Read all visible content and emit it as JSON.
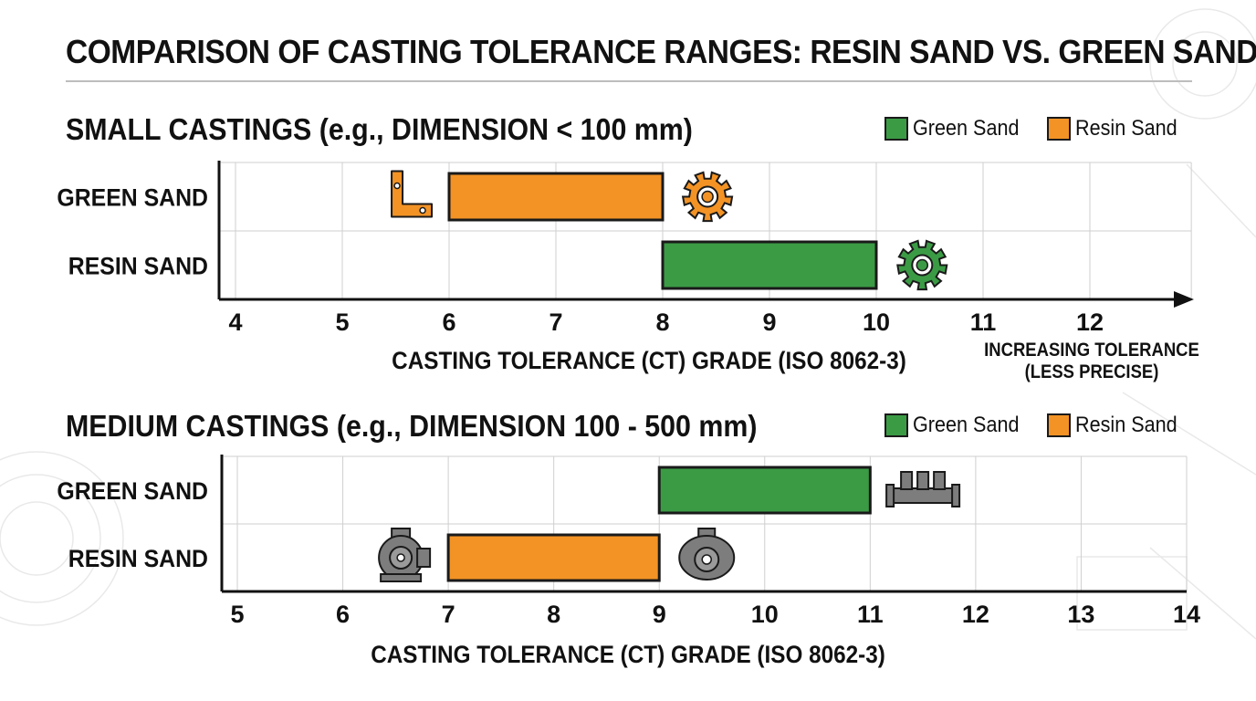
{
  "title": "COMPARISON OF CASTING TOLERANCE RANGES: RESIN SAND VS. GREEN SAND",
  "colors": {
    "green_sand": "#3b9b45",
    "resin_sand": "#f39325",
    "grid": "#cfcfcf",
    "axis": "#111111",
    "icon_gray": "#7d7d7d"
  },
  "chart_data": [
    {
      "type": "bar",
      "orientation": "horizontal-range",
      "title": "SMALL CASTINGS (e.g., DIMENSION < 100 mm)",
      "xlabel": "CASTING TOLERANCE (CT) GRADE (ISO 8062-3)",
      "axis_note": [
        "INCREASING TOLERANCE",
        "(LESS PRECISE)"
      ],
      "xlim": [
        4,
        13
      ],
      "ticks": [
        4,
        5,
        6,
        7,
        8,
        9,
        10,
        11,
        12
      ],
      "categories": [
        "GREEN SAND",
        "RESIN SAND"
      ],
      "legend": [
        {
          "name": "Green Sand",
          "color": "#3b9b45"
        },
        {
          "name": "Resin Sand",
          "color": "#f39325"
        }
      ],
      "legend_position": "top-right",
      "grid": true,
      "ranges": [
        {
          "category": "GREEN SAND",
          "start": 6,
          "end": 8,
          "color": "#f39325"
        },
        {
          "category": "RESIN SAND",
          "start": 8,
          "end": 10,
          "color": "#3b9b45"
        }
      ],
      "icons": [
        {
          "name": "bracket-icon",
          "row": 0,
          "x": 5.65,
          "color": "#f39325"
        },
        {
          "name": "gear-icon",
          "row": 0,
          "x": 8.42,
          "color": "#f39325"
        },
        {
          "name": "gear-icon",
          "row": 1,
          "x": 10.43,
          "color": "#3b9b45"
        }
      ]
    },
    {
      "type": "bar",
      "orientation": "horizontal-range",
      "title": "MEDIUM CASTINGS (e.g., DIMENSION 100 - 500 mm)",
      "xlabel": "CASTING TOLERANCE (CT) GRADE (ISO 8062-3)",
      "xlim": [
        5,
        14
      ],
      "ticks": [
        5,
        6,
        7,
        8,
        9,
        10,
        11,
        12,
        13,
        14
      ],
      "categories": [
        "GREEN SAND",
        "RESIN SAND"
      ],
      "legend": [
        {
          "name": "Green Sand",
          "color": "#3b9b45"
        },
        {
          "name": "Resin Sand",
          "color": "#f39325"
        }
      ],
      "legend_position": "top-right",
      "grid": true,
      "ranges": [
        {
          "category": "GREEN SAND",
          "start": 9,
          "end": 11,
          "color": "#3b9b45"
        },
        {
          "category": "RESIN SAND",
          "start": 7,
          "end": 9,
          "color": "#f39325"
        }
      ],
      "icons": [
        {
          "name": "manifold-icon",
          "row": 0,
          "x": 11.5,
          "color": "#7d7d7d"
        },
        {
          "name": "pump-housing-icon",
          "row": 1,
          "x": 6.55,
          "color": "#7d7d7d"
        },
        {
          "name": "valve-body-icon",
          "row": 1,
          "x": 9.45,
          "color": "#7d7d7d"
        }
      ]
    }
  ]
}
